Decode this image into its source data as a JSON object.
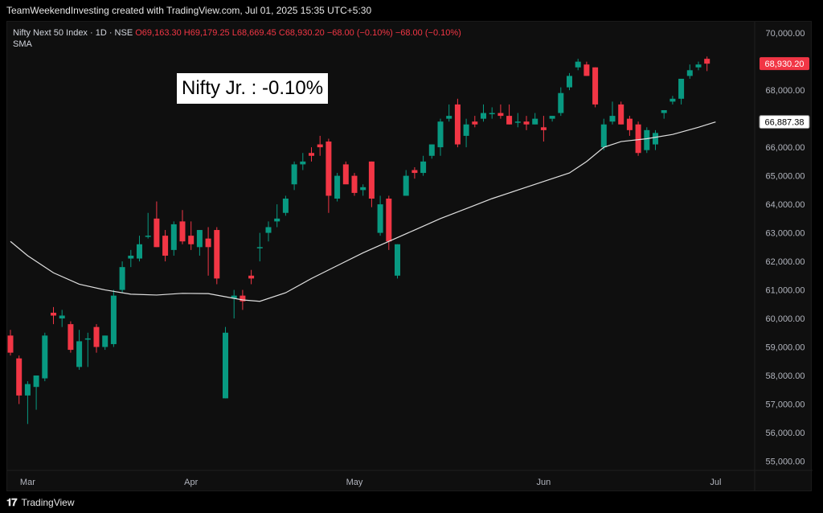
{
  "header": {
    "attribution": "TeamWeekendInvesting created with TradingView.com, Jul 01, 2025 15:35 UTC+5:30"
  },
  "legend": {
    "symbol": "Nifty Next 50 Index · 1D · NSE",
    "open": "O69,163.30",
    "high": "H69,179.25",
    "low": "L68,669.45",
    "close": "C68,930.20",
    "change": "−68.00 (−0.10%)",
    "change2": "−68.00 (−0.10%)",
    "indicator": "SMA"
  },
  "overlay": {
    "label": "Nifty Jr. : -0.10%"
  },
  "footer": {
    "brand": "TradingView"
  },
  "colors": {
    "up": "#089981",
    "down": "#f23645",
    "sma": "#e0e0e0",
    "bg": "#0f0f0f"
  },
  "chart_data": {
    "type": "candlestick",
    "y_axis_side": "right",
    "ylim": [
      54900,
      70400
    ],
    "yticks": [
      "70,000.00",
      "69,000.00",
      "68,000.00",
      "67,000.00",
      "66,000.00",
      "65,000.00",
      "64,000.00",
      "63,000.00",
      "62,000.00",
      "61,000.00",
      "60,000.00",
      "59,000.00",
      "58,000.00",
      "57,000.00",
      "56,000.00",
      "55,000.00"
    ],
    "ytick_values": [
      70000,
      69000,
      68000,
      67000,
      66000,
      65000,
      64000,
      63000,
      62000,
      61000,
      60000,
      59000,
      58000,
      57000,
      56000,
      55000
    ],
    "xticks": [
      {
        "label": "Mar",
        "index": 2
      },
      {
        "label": "Apr",
        "index": 21
      },
      {
        "label": "May",
        "index": 40
      },
      {
        "label": "Jun",
        "index": 62
      },
      {
        "label": "Jul",
        "index": 82
      }
    ],
    "price_labels": [
      {
        "label": "68,930.20",
        "value": 68930.2,
        "style": "last"
      },
      {
        "label": "66,887.38",
        "value": 66887.38,
        "style": "sma"
      }
    ],
    "candles": [
      [
        59400,
        59600,
        58700,
        58800
      ],
      [
        58600,
        58700,
        57000,
        57300
      ],
      [
        57300,
        57800,
        56300,
        57700
      ],
      [
        57600,
        58000,
        56800,
        58000
      ],
      [
        57900,
        59500,
        57800,
        59400
      ],
      [
        60200,
        60400,
        59800,
        60100
      ],
      [
        60000,
        60300,
        59700,
        60100
      ],
      [
        59800,
        59900,
        58800,
        58900
      ],
      [
        58300,
        59600,
        58200,
        59200
      ],
      [
        59300,
        59500,
        58300,
        59300
      ],
      [
        59700,
        59800,
        58800,
        59000
      ],
      [
        59000,
        59400,
        58900,
        59400
      ],
      [
        59100,
        61000,
        59000,
        60800
      ],
      [
        61000,
        62000,
        60900,
        61800
      ],
      [
        62100,
        62400,
        61800,
        62200
      ],
      [
        62100,
        62900,
        62000,
        62600
      ],
      [
        62900,
        63700,
        62800,
        62900
      ],
      [
        63500,
        64100,
        62500,
        62500
      ],
      [
        62900,
        63100,
        62000,
        62200
      ],
      [
        62400,
        63400,
        62200,
        63300
      ],
      [
        63400,
        63800,
        62600,
        62700
      ],
      [
        62900,
        63400,
        62400,
        62600
      ],
      [
        62500,
        63100,
        62200,
        63100
      ],
      [
        62800,
        63200,
        61500,
        62500
      ],
      [
        63100,
        63200,
        61200,
        61400
      ],
      [
        57200,
        59700,
        57200,
        59500
      ],
      [
        60700,
        61000,
        60000,
        60800
      ],
      [
        60800,
        61000,
        60300,
        60600
      ],
      [
        61500,
        61700,
        61200,
        61400
      ],
      [
        62500,
        63000,
        62000,
        62500
      ],
      [
        63000,
        63400,
        62700,
        63200
      ],
      [
        63400,
        64000,
        63200,
        63500
      ],
      [
        63700,
        64300,
        63600,
        64200
      ],
      [
        64700,
        65500,
        64500,
        65400
      ],
      [
        65400,
        65800,
        65200,
        65500
      ],
      [
        65800,
        66000,
        65500,
        65700
      ],
      [
        66100,
        66400,
        65700,
        66000
      ],
      [
        66200,
        66300,
        63700,
        64300
      ],
      [
        64200,
        65100,
        64100,
        65000
      ],
      [
        65400,
        65500,
        64800,
        64700
      ],
      [
        65000,
        65100,
        64300,
        64400
      ],
      [
        64500,
        64700,
        64300,
        64600
      ],
      [
        65500,
        65500,
        63900,
        64200
      ],
      [
        63000,
        64300,
        62900,
        64000
      ],
      [
        64200,
        64300,
        62400,
        62700
      ],
      [
        61500,
        62600,
        61400,
        62600
      ],
      [
        64300,
        65200,
        64300,
        65000
      ],
      [
        65200,
        65300,
        64900,
        65100
      ],
      [
        65100,
        65700,
        65000,
        65500
      ],
      [
        65700,
        66100,
        65600,
        66100
      ],
      [
        66000,
        67000,
        65700,
        66900
      ],
      [
        67000,
        67500,
        66900,
        67100
      ],
      [
        67500,
        67700,
        66000,
        66100
      ],
      [
        66400,
        67000,
        66000,
        66800
      ],
      [
        66900,
        67100,
        66700,
        66800
      ],
      [
        67000,
        67500,
        66900,
        67200
      ],
      [
        67200,
        67400,
        67000,
        67200
      ],
      [
        67200,
        67500,
        67000,
        67100
      ],
      [
        67100,
        67500,
        66800,
        66800
      ],
      [
        66900,
        67200,
        66700,
        66900
      ],
      [
        66900,
        67100,
        66600,
        66800
      ],
      [
        66800,
        67200,
        66800,
        67000
      ],
      [
        66700,
        67100,
        66200,
        66600
      ],
      [
        67000,
        67100,
        66900,
        67100
      ],
      [
        67200,
        68100,
        67100,
        67900
      ],
      [
        68100,
        68600,
        68000,
        68500
      ],
      [
        68800,
        69100,
        68700,
        69000
      ],
      [
        68900,
        69000,
        68500,
        68500
      ],
      [
        68800,
        68800,
        67400,
        67500
      ],
      [
        66000,
        67000,
        65900,
        66800
      ],
      [
        66900,
        67600,
        66800,
        67100
      ],
      [
        67500,
        67600,
        66800,
        66800
      ],
      [
        67000,
        67100,
        66400,
        66600
      ],
      [
        66800,
        66900,
        65700,
        65800
      ],
      [
        65900,
        66700,
        65800,
        66600
      ],
      [
        66100,
        66600,
        65900,
        66500
      ],
      [
        67200,
        67300,
        67000,
        67300
      ],
      [
        67600,
        67800,
        67500,
        67700
      ],
      [
        67700,
        68400,
        67500,
        68400
      ],
      [
        68500,
        68900,
        68400,
        68700
      ],
      [
        68800,
        69000,
        68700,
        68900
      ],
      [
        69100,
        69180,
        68670,
        68930
      ]
    ],
    "sma": [
      [
        0,
        62700
      ],
      [
        2,
        62200
      ],
      [
        5,
        61600
      ],
      [
        8,
        61200
      ],
      [
        11,
        61000
      ],
      [
        14,
        60850
      ],
      [
        17,
        60820
      ],
      [
        20,
        60880
      ],
      [
        23,
        60870
      ],
      [
        27,
        60650
      ],
      [
        29,
        60600
      ],
      [
        32,
        60900
      ],
      [
        35,
        61400
      ],
      [
        38,
        61850
      ],
      [
        41,
        62300
      ],
      [
        44,
        62700
      ],
      [
        47,
        63100
      ],
      [
        50,
        63500
      ],
      [
        53,
        63850
      ],
      [
        56,
        64200
      ],
      [
        59,
        64500
      ],
      [
        62,
        64800
      ],
      [
        65,
        65100
      ],
      [
        67,
        65500
      ],
      [
        69,
        66000
      ],
      [
        71,
        66200
      ],
      [
        74,
        66300
      ],
      [
        77,
        66450
      ],
      [
        80,
        66700
      ],
      [
        82,
        66887
      ]
    ]
  }
}
